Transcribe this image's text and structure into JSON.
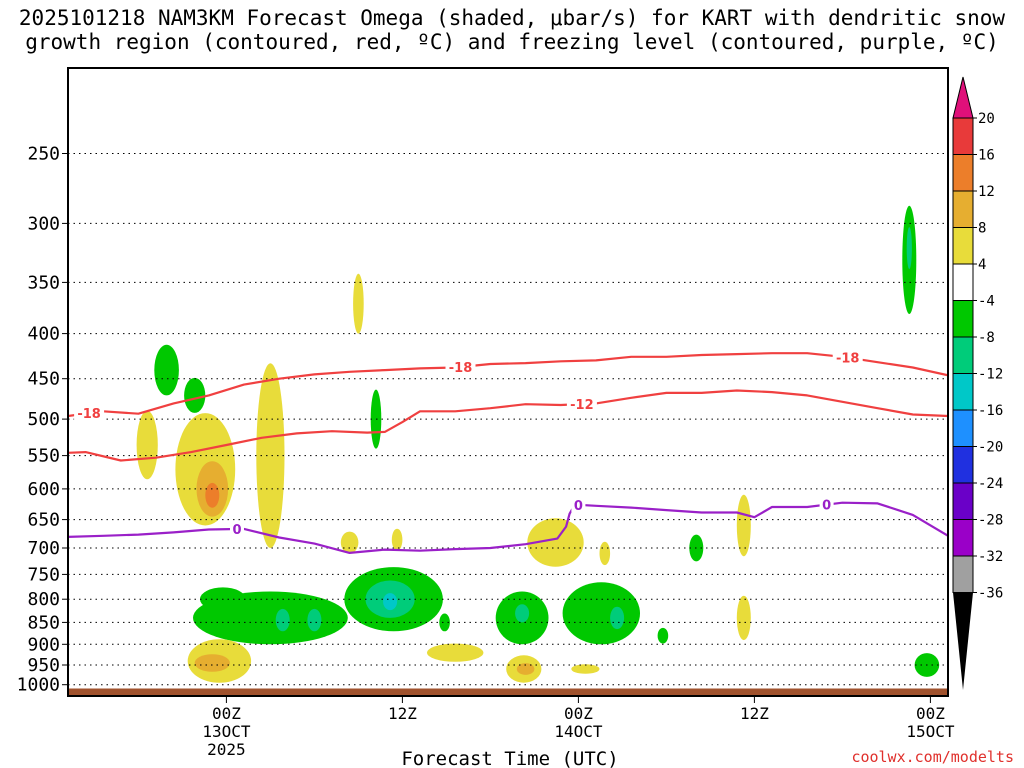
{
  "chart_data": {
    "type": "heatmap",
    "title_line1": "2025101218 NAM3KM Forecast Omega (shaded, μbar/s) for KART with dendritic snow",
    "title_line2": "growth region (contoured, red, ºC) and freezing level (contoured, purple, ºC)",
    "xlabel": "Forecast Time (UTC)",
    "credit": "coolwx.com/modelts",
    "x_range_hours": [
      -9,
      41
    ],
    "y_range_hpa": [
      200,
      1030
    ],
    "y_scale": "log",
    "grid": true,
    "y_ticks": [
      250,
      300,
      350,
      400,
      450,
      500,
      550,
      600,
      650,
      700,
      750,
      800,
      850,
      900,
      950,
      1000
    ],
    "x_ticks": [
      {
        "hour": 0,
        "line1": "00Z",
        "line2": "13OCT",
        "line3": "2025"
      },
      {
        "hour": 10,
        "line1": "12Z",
        "line2": "",
        "line3": ""
      },
      {
        "hour": 20,
        "line1": "00Z",
        "line2": "14OCT",
        "line3": ""
      },
      {
        "hour": 30,
        "line1": "12Z",
        "line2": "",
        "line3": ""
      },
      {
        "hour": 40,
        "line1": "00Z",
        "line2": "15OCT",
        "line3": ""
      }
    ],
    "colorbar": {
      "labels": [
        "20",
        "16",
        "12",
        "8",
        "4",
        "-4",
        "-8",
        "-12",
        "-16",
        "-20",
        "-24",
        "-28",
        "-32",
        "-36"
      ],
      "top_color": "#e0107a",
      "colors": [
        "#e83a3a",
        "#ec7e2a",
        "#e6ae30",
        "#e8dc3a",
        "#ffffff",
        "#00c800",
        "#00cc7a",
        "#00c8c8",
        "#1e90ff",
        "#2030e0",
        "#6a00c8",
        "#9a00c8",
        "#a0a0a0"
      ],
      "bottom_color": "#000000"
    },
    "contours": [
      {
        "label": "-18",
        "color": "#f04040",
        "label_at_hour": [
          -7.8,
          13.3,
          35.3
        ],
        "points": [
          [
            -9,
            496
          ],
          [
            -7,
            490
          ],
          [
            -5,
            493
          ],
          [
            -3,
            480
          ],
          [
            -1,
            470
          ],
          [
            1,
            457
          ],
          [
            3,
            450
          ],
          [
            5,
            445
          ],
          [
            7,
            442
          ],
          [
            9,
            440
          ],
          [
            11,
            438
          ],
          [
            13,
            437
          ],
          [
            15,
            433
          ],
          [
            17,
            432
          ],
          [
            19,
            430
          ],
          [
            21,
            429
          ],
          [
            23,
            425
          ],
          [
            25,
            425
          ],
          [
            27,
            423
          ],
          [
            29,
            422
          ],
          [
            31,
            421
          ],
          [
            33,
            421
          ],
          [
            35,
            425
          ],
          [
            37,
            431
          ],
          [
            39,
            437
          ],
          [
            41,
            446
          ]
        ]
      },
      {
        "label": "-12",
        "color": "#f04040",
        "label_at_hour": [
          20.2
        ],
        "points": [
          [
            -9,
            546
          ],
          [
            -8,
            545
          ],
          [
            -6,
            557
          ],
          [
            -4,
            553
          ],
          [
            -2,
            545
          ],
          [
            0,
            535
          ],
          [
            2,
            525
          ],
          [
            4,
            519
          ],
          [
            6,
            516
          ],
          [
            8,
            518
          ],
          [
            9,
            517
          ],
          [
            10,
            504
          ],
          [
            11,
            490
          ],
          [
            13,
            490
          ],
          [
            15,
            486
          ],
          [
            17,
            481
          ],
          [
            19,
            482
          ],
          [
            21,
            480
          ],
          [
            23,
            473
          ],
          [
            25,
            467
          ],
          [
            27,
            467
          ],
          [
            29,
            464
          ],
          [
            31,
            466
          ],
          [
            33,
            470
          ],
          [
            35,
            478
          ],
          [
            37,
            486
          ],
          [
            39,
            494
          ],
          [
            41,
            496
          ]
        ]
      },
      {
        "label": "0",
        "color": "#9a20c8",
        "label_at_hour": [
          0.6,
          20.0,
          34.1
        ],
        "points": [
          [
            -9,
            680
          ],
          [
            -7,
            678
          ],
          [
            -5,
            676
          ],
          [
            -3,
            672
          ],
          [
            -1,
            667
          ],
          [
            1,
            666
          ],
          [
            3,
            681
          ],
          [
            5,
            692
          ],
          [
            7,
            709
          ],
          [
            9,
            703
          ],
          [
            11,
            705
          ],
          [
            13,
            702
          ],
          [
            15,
            700
          ],
          [
            17,
            693
          ],
          [
            18.8,
            683
          ],
          [
            19.3,
            662
          ],
          [
            19.5,
            640
          ],
          [
            19.8,
            625
          ],
          [
            21,
            627
          ],
          [
            23,
            630
          ],
          [
            25,
            634
          ],
          [
            27,
            638
          ],
          [
            29,
            638
          ],
          [
            30,
            646
          ],
          [
            31,
            629
          ],
          [
            33,
            629
          ],
          [
            35,
            622
          ],
          [
            37,
            623
          ],
          [
            39,
            642
          ],
          [
            41,
            678
          ]
        ]
      }
    ],
    "omega_regions": [
      {
        "value": -6,
        "hour": -3.4,
        "p_center": 440,
        "hw": 0.7,
        "hh": 30
      },
      {
        "value": 6,
        "hour": -4.5,
        "p_center": 535,
        "hw": 0.6,
        "hh": 50
      },
      {
        "value": 6,
        "hour": -1.2,
        "p_center": 570,
        "hw": 1.7,
        "hh": 90
      },
      {
        "value": 10,
        "hour": -0.8,
        "p_center": 600,
        "hw": 0.9,
        "hh": 45
      },
      {
        "value": 14,
        "hour": -0.8,
        "p_center": 610,
        "hw": 0.4,
        "hh": 20
      },
      {
        "value": -6,
        "hour": -1.8,
        "p_center": 470,
        "hw": 0.6,
        "hh": 22
      },
      {
        "value": 6,
        "hour": 2.5,
        "p_center": 550,
        "hw": 0.8,
        "hh": 150
      },
      {
        "value": 6,
        "hour": 7.5,
        "p_center": 370,
        "hw": 0.3,
        "hh": 30
      },
      {
        "value": -6,
        "hour": 8.5,
        "p_center": 500,
        "hw": 0.3,
        "hh": 40
      },
      {
        "value": 6,
        "hour": 7.0,
        "p_center": 690,
        "hw": 0.5,
        "hh": 20
      },
      {
        "value": 6,
        "hour": 9.7,
        "p_center": 685,
        "hw": 0.3,
        "hh": 20
      },
      {
        "value": -6,
        "hour": 2.5,
        "p_center": 840,
        "hw": 4.4,
        "hh": 60
      },
      {
        "value": -10,
        "hour": 3.2,
        "p_center": 845,
        "hw": 0.4,
        "hh": 25
      },
      {
        "value": -10,
        "hour": 5.0,
        "p_center": 845,
        "hw": 0.4,
        "hh": 25
      },
      {
        "value": -6,
        "hour": -0.2,
        "p_center": 800,
        "hw": 1.3,
        "hh": 25
      },
      {
        "value": -6,
        "hour": 9.5,
        "p_center": 800,
        "hw": 2.8,
        "hh": 70
      },
      {
        "value": -10,
        "hour": 9.3,
        "p_center": 800,
        "hw": 1.4,
        "hh": 40
      },
      {
        "value": -14,
        "hour": 9.3,
        "p_center": 805,
        "hw": 0.4,
        "hh": 18
      },
      {
        "value": -6,
        "hour": 12.4,
        "p_center": 850,
        "hw": 0.3,
        "hh": 20
      },
      {
        "value": 6,
        "hour": 13.0,
        "p_center": 920,
        "hw": 1.6,
        "hh": 22
      },
      {
        "value": 6,
        "hour": 18.7,
        "p_center": 690,
        "hw": 1.6,
        "hh": 45
      },
      {
        "value": 6,
        "hour": 21.5,
        "p_center": 710,
        "hw": 0.3,
        "hh": 22
      },
      {
        "value": -6,
        "hour": 16.8,
        "p_center": 840,
        "hw": 1.5,
        "hh": 60
      },
      {
        "value": -10,
        "hour": 16.8,
        "p_center": 830,
        "hw": 0.4,
        "hh": 20
      },
      {
        "value": -6,
        "hour": 21.3,
        "p_center": 830,
        "hw": 2.2,
        "hh": 70
      },
      {
        "value": -10,
        "hour": 22.2,
        "p_center": 840,
        "hw": 0.4,
        "hh": 25
      },
      {
        "value": -6,
        "hour": 24.8,
        "p_center": 880,
        "hw": 0.3,
        "hh": 18
      },
      {
        "value": -6,
        "hour": 26.7,
        "p_center": 700,
        "hw": 0.4,
        "hh": 25
      },
      {
        "value": 6,
        "hour": 29.4,
        "p_center": 660,
        "hw": 0.4,
        "hh": 55
      },
      {
        "value": 6,
        "hour": 29.4,
        "p_center": 840,
        "hw": 0.4,
        "hh": 50
      },
      {
        "value": 6,
        "hour": 16.9,
        "p_center": 960,
        "hw": 1.0,
        "hh": 35
      },
      {
        "value": 10,
        "hour": 17.0,
        "p_center": 960,
        "hw": 0.5,
        "hh": 15
      },
      {
        "value": 6,
        "hour": 20.4,
        "p_center": 960,
        "hw": 0.8,
        "hh": 12
      },
      {
        "value": 6,
        "hour": -0.4,
        "p_center": 940,
        "hw": 1.8,
        "hh": 55
      },
      {
        "value": 10,
        "hour": -0.8,
        "p_center": 945,
        "hw": 1.0,
        "hh": 22
      },
      {
        "value": -6,
        "hour": 38.8,
        "p_center": 330,
        "hw": 0.4,
        "hh": 50
      },
      {
        "value": -10,
        "hour": 38.8,
        "p_center": 320,
        "hw": 0.15,
        "hh": 18
      },
      {
        "value": -6,
        "hour": 39.8,
        "p_center": 950,
        "hw": 0.7,
        "hh": 30
      }
    ]
  }
}
